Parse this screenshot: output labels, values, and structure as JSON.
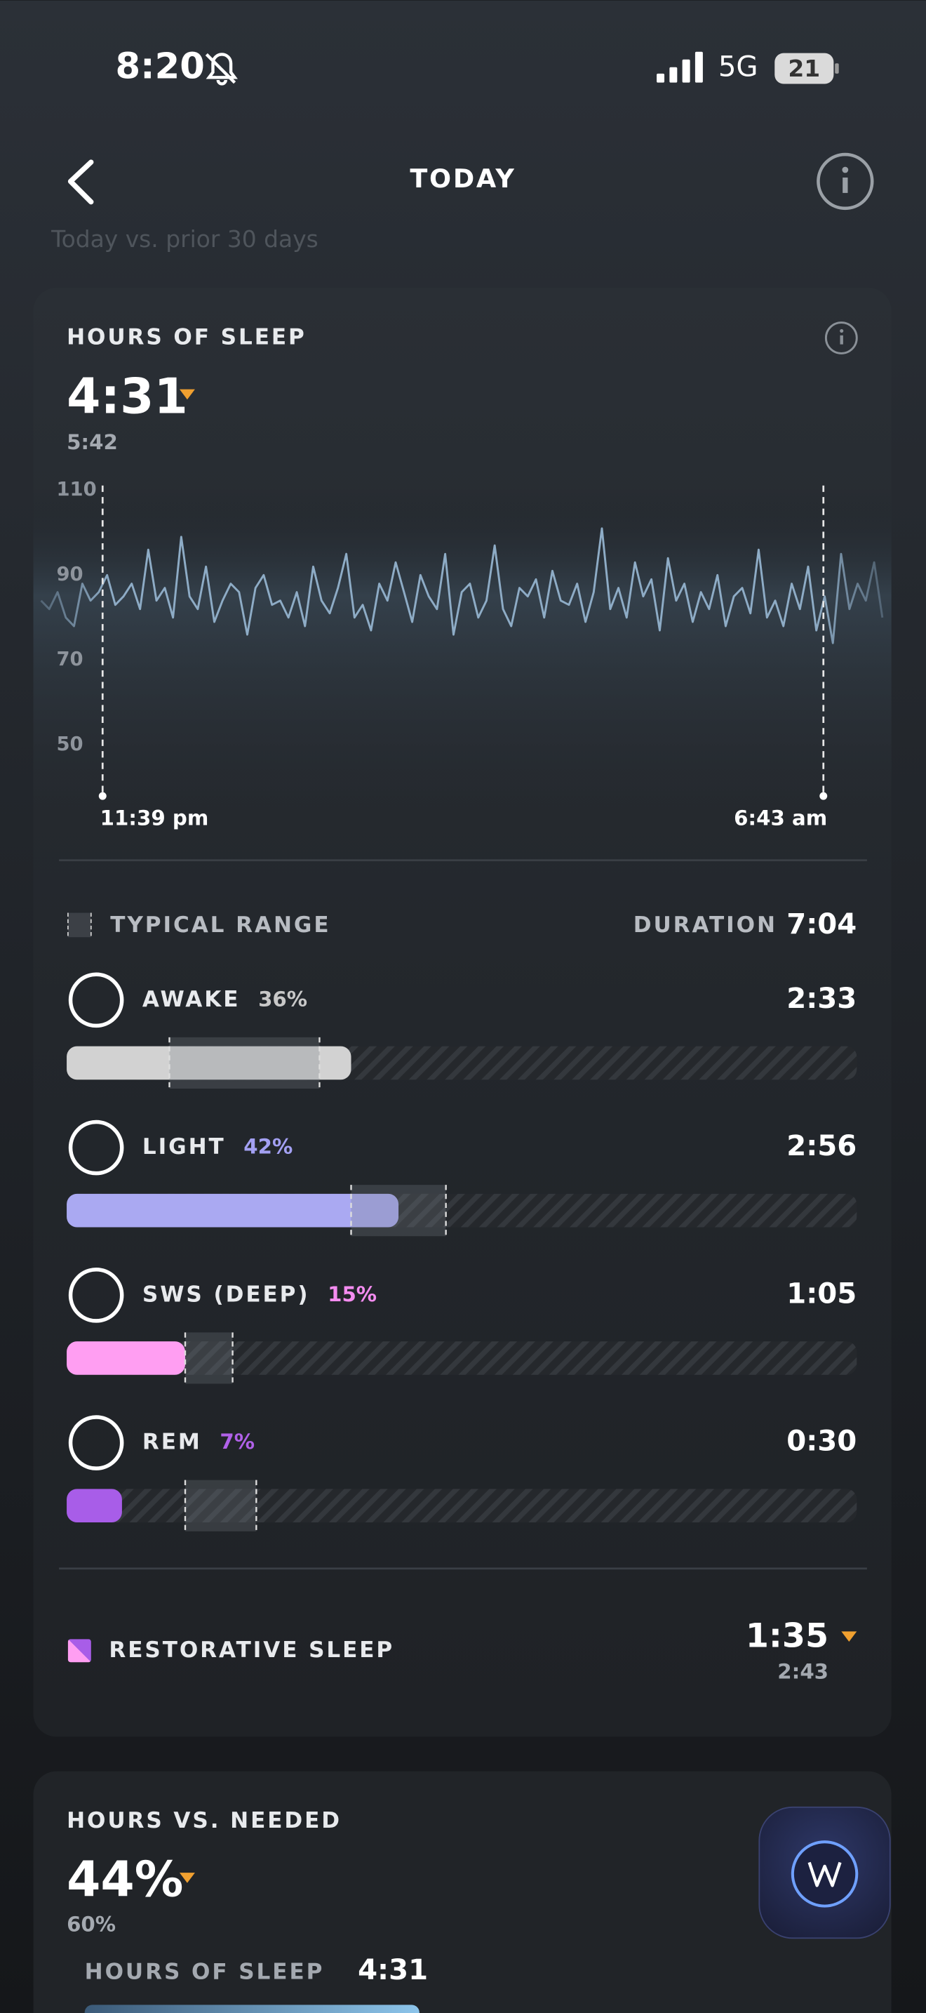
{
  "status_bar": {
    "time": "8:20",
    "network": "5G",
    "battery": "21"
  },
  "nav": {
    "title": "TODAY"
  },
  "subtitle": "Today vs. prior 30 days",
  "hours_of_sleep": {
    "title": "HOURS OF SLEEP",
    "value": "4:31",
    "baseline": "5:42"
  },
  "chart_data": {
    "type": "line",
    "color": "#8eacc6",
    "ylim": [
      38,
      112
    ],
    "yticks": [
      50,
      70,
      90,
      110
    ],
    "start_label": "11:39 pm",
    "end_label": "6:43 am",
    "values": [
      84,
      82,
      86,
      80,
      78,
      88,
      84,
      86,
      90,
      83,
      85,
      88,
      82,
      96,
      84,
      87,
      80,
      99,
      85,
      82,
      92,
      79,
      84,
      88,
      86,
      76,
      87,
      90,
      83,
      84,
      80,
      86,
      78,
      92,
      84,
      81,
      87,
      95,
      80,
      83,
      77,
      88,
      84,
      93,
      86,
      79,
      90,
      85,
      82,
      95,
      76,
      86,
      88,
      80,
      84,
      97,
      82,
      78,
      87,
      85,
      89,
      80,
      91,
      84,
      83,
      88,
      79,
      86,
      101,
      82,
      87,
      80,
      93,
      85,
      89,
      77,
      94,
      84,
      88,
      79,
      86,
      82,
      90,
      78,
      85,
      87,
      81,
      96,
      80,
      84,
      78,
      88,
      82,
      92,
      77,
      85,
      74,
      95,
      82,
      88,
      84,
      93,
      80
    ]
  },
  "stages": {
    "legend": "TYPICAL RANGE",
    "duration_label": "DURATION",
    "duration": "7:04",
    "xlim": [
      0,
      100
    ],
    "items": [
      {
        "name": "AWAKE",
        "percent": 36,
        "percent_label": "36%",
        "duration": "2:33",
        "color": "#d2d2d2",
        "label_color": "#c8c8c8",
        "typical": [
          13,
          32
        ]
      },
      {
        "name": "LIGHT",
        "percent": 42,
        "percent_label": "42%",
        "duration": "2:56",
        "color": "#aaa9f2",
        "label_color": "#a3a0f2",
        "typical": [
          36,
          48
        ]
      },
      {
        "name": "SWS (DEEP)",
        "percent": 15,
        "percent_label": "15%",
        "duration": "1:05",
        "color": "#ff9ef2",
        "label_color": "#f48cf0",
        "typical": [
          15,
          21
        ]
      },
      {
        "name": "REM",
        "percent": 7,
        "percent_label": "7%",
        "duration": "0:30",
        "color": "#a85de8",
        "label_color": "#b061e8",
        "typical": [
          15,
          24
        ]
      }
    ]
  },
  "restorative": {
    "label": "RESTORATIVE SLEEP",
    "value": "1:35",
    "baseline": "2:43"
  },
  "hours_vs_needed": {
    "title": "HOURS VS. NEEDED",
    "value": "44%",
    "baseline": "60%",
    "row_label": "HOURS OF SLEEP",
    "row_value": "4:31"
  }
}
